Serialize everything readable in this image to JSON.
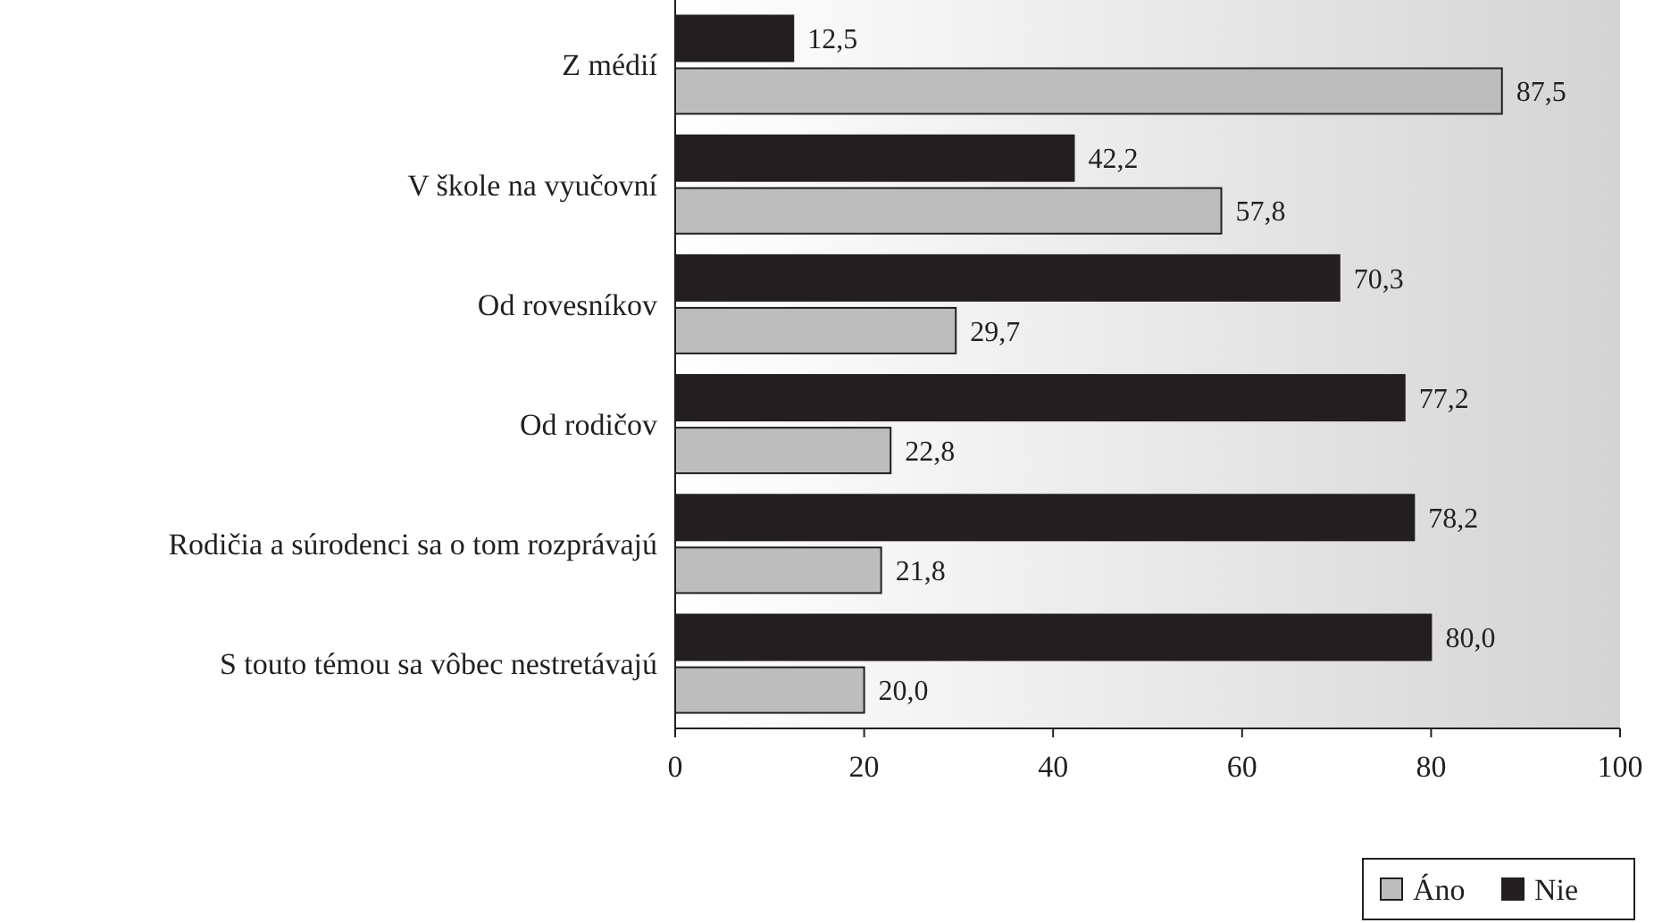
{
  "chart_data": {
    "type": "bar",
    "orientation": "horizontal",
    "categories": [
      "Z médií",
      "V škole na vyučovní",
      "Od rovesníkov",
      "Od rodičov ",
      "Rodičia a súrodenci sa o tom rozprávajú",
      "S touto témou sa vôbec nestretávajú"
    ],
    "series": [
      {
        "name": "Áno",
        "color": "#bdbdbd",
        "values": [
          87.5,
          57.8,
          29.7,
          22.8,
          21.8,
          20.0
        ],
        "value_labels": [
          "87,5",
          "57,8",
          "29,7",
          "22,8",
          "21,8",
          "20,0"
        ]
      },
      {
        "name": "Nie",
        "color": "#231f20",
        "values": [
          12.5,
          42.2,
          70.3,
          77.2,
          78.2,
          80.0
        ],
        "value_labels": [
          "12,5",
          "42,2",
          "70,3",
          "77,2",
          "78,2",
          "80,0"
        ]
      }
    ],
    "xlim": [
      0,
      100
    ],
    "xticks": [
      0,
      20,
      40,
      60,
      80,
      100
    ],
    "grid": false,
    "legend": "bottom right"
  }
}
